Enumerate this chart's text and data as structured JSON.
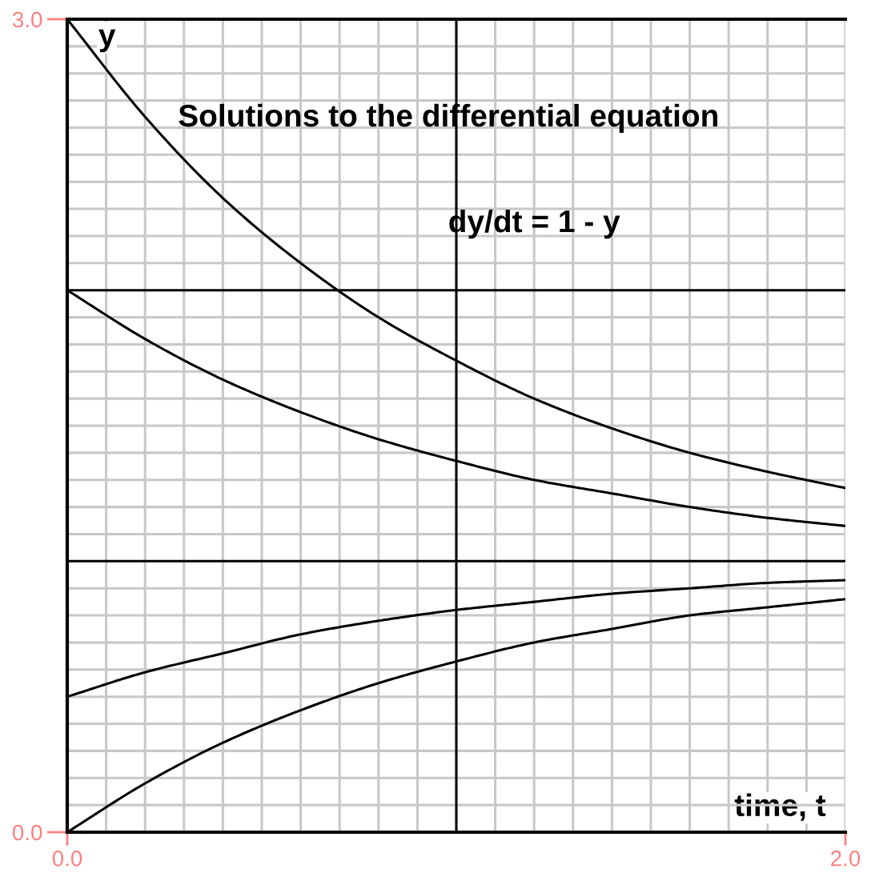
{
  "chart_data": {
    "type": "line",
    "title": "Solutions to the differential equation",
    "subtitle": "dy/dt = 1 - y",
    "xlabel": "time, t",
    "ylabel": "y",
    "x": [
      0,
      0.2,
      0.4,
      0.6,
      0.8,
      1.0,
      1.2,
      1.4,
      1.6,
      1.8,
      2.0
    ],
    "series": [
      {
        "color": "#000000",
        "values": [
          3,
          2.64,
          2.34,
          2.1,
          1.9,
          1.74,
          1.6,
          1.49,
          1.4,
          1.33,
          1.27
        ]
      },
      {
        "color": "#000000",
        "values": [
          2,
          1.82,
          1.67,
          1.55,
          1.45,
          1.37,
          1.3,
          1.25,
          1.2,
          1.16,
          1.13
        ]
      },
      {
        "color": "#000000",
        "values": [
          0.5,
          0.59,
          0.66,
          0.73,
          0.78,
          0.82,
          0.85,
          0.88,
          0.9,
          0.92,
          0.93
        ]
      },
      {
        "color": "#000000",
        "values": [
          0,
          0.18,
          0.33,
          0.45,
          0.55,
          0.63,
          0.7,
          0.75,
          0.8,
          0.83,
          0.86
        ]
      }
    ],
    "xlim": [
      0,
      2
    ],
    "ylim": [
      0,
      3
    ],
    "xticks": [
      {
        "value": 0,
        "label": "0.0"
      },
      {
        "value": 0.1,
        "label": null
      },
      {
        "value": 0.2,
        "label": null
      },
      {
        "value": 0.3,
        "label": null
      },
      {
        "value": 0.4,
        "label": null
      },
      {
        "value": 0.5,
        "label": null
      },
      {
        "value": 0.6,
        "label": null
      },
      {
        "value": 0.7,
        "label": null
      },
      {
        "value": 0.8,
        "label": null
      },
      {
        "value": 0.9,
        "label": null
      },
      {
        "value": 1.1,
        "label": null
      },
      {
        "value": 1.2,
        "label": null
      },
      {
        "value": 1.3,
        "label": null
      },
      {
        "value": 1.4,
        "label": null
      },
      {
        "value": 1.5,
        "label": null
      },
      {
        "value": 1.6,
        "label": null
      },
      {
        "value": 1.7,
        "label": null
      },
      {
        "value": 1.8,
        "label": null
      },
      {
        "value": 1.9,
        "label": null
      },
      {
        "value": 2,
        "label": "2.0"
      }
    ],
    "yticks": [
      {
        "value": 0,
        "label": "0.0"
      },
      {
        "value": 0.1,
        "label": null
      },
      {
        "value": 0.2,
        "label": null
      },
      {
        "value": 0.3,
        "label": null
      },
      {
        "value": 0.4,
        "label": null
      },
      {
        "value": 0.5,
        "label": null
      },
      {
        "value": 0.6,
        "label": null
      },
      {
        "value": 0.7,
        "label": null
      },
      {
        "value": 0.8,
        "label": null
      },
      {
        "value": 0.9,
        "label": null
      },
      {
        "value": 1.1,
        "label": null
      },
      {
        "value": 1.2,
        "label": null
      },
      {
        "value": 1.3,
        "label": null
      },
      {
        "value": 1.4,
        "label": null
      },
      {
        "value": 1.5,
        "label": null
      },
      {
        "value": 1.6,
        "label": null
      },
      {
        "value": 1.7,
        "label": null
      },
      {
        "value": 1.8,
        "label": null
      },
      {
        "value": 1.9,
        "label": null
      },
      {
        "value": 2.1,
        "label": null
      },
      {
        "value": 2.2,
        "label": null
      },
      {
        "value": 2.3,
        "label": null
      },
      {
        "value": 2.4,
        "label": null
      },
      {
        "value": 2.5,
        "label": null
      },
      {
        "value": 2.6,
        "label": null
      },
      {
        "value": 2.7,
        "label": null
      },
      {
        "value": 2.8,
        "label": null
      },
      {
        "value": 2.9,
        "label": null
      },
      {
        "value": 3,
        "label": "3.0"
      }
    ],
    "grid": true,
    "ref_lines": [
      {
        "axis": "x",
        "value": 1,
        "color": "#000000"
      },
      {
        "axis": "y",
        "value": 1,
        "color": "#000000"
      },
      {
        "axis": "y",
        "value": 2,
        "color": "#000000"
      }
    ]
  }
}
